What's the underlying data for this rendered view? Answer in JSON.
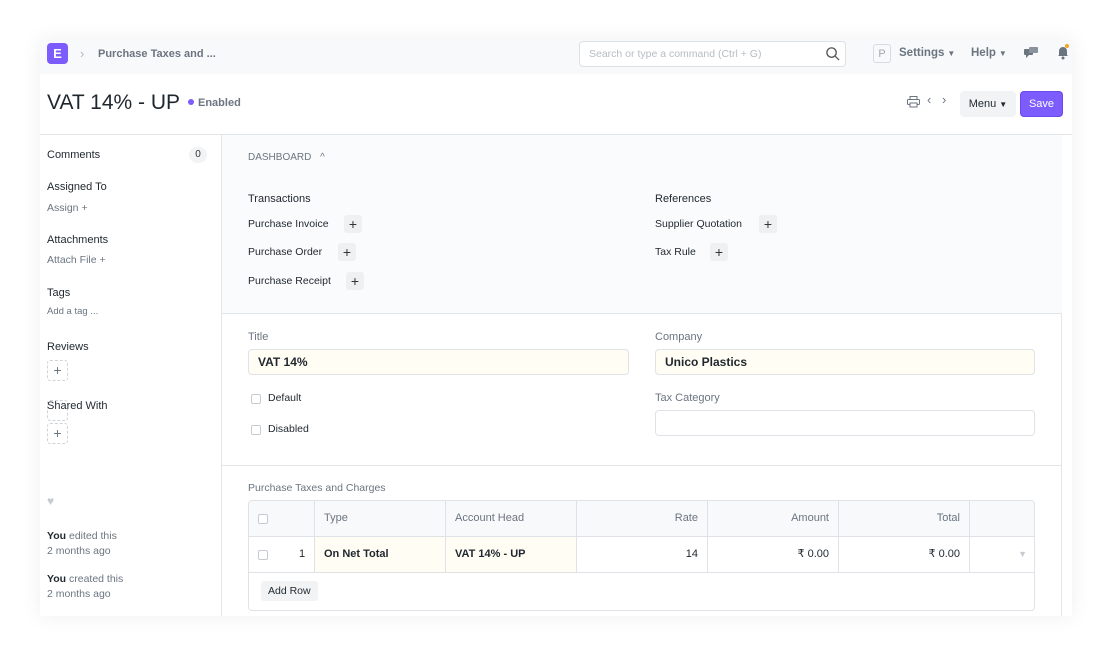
{
  "navbar": {
    "logo": "E",
    "breadcrumb": "Purchase Taxes and ...",
    "search_placeholder": "Search or type a command (Ctrl + G)",
    "avatar": "P",
    "settings": "Settings",
    "help": "Help",
    "accent": "#7c5cfc"
  },
  "header": {
    "title": "VAT 14% - UP",
    "status": "Enabled",
    "menu": "Menu",
    "save": "Save"
  },
  "sidebar": {
    "comments": "Comments",
    "comments_count": "0",
    "assigned_to": "Assigned To",
    "assign": "Assign",
    "attachments": "Attachments",
    "attach_file": "Attach File",
    "tags": "Tags",
    "add_tag": "Add a tag ...",
    "reviews": "Reviews",
    "shared_with": "Shared With",
    "activity": [
      {
        "who": "You",
        "what": " edited this",
        "when": "2 months ago"
      },
      {
        "who": "You",
        "what": " created this",
        "when": "2 months ago"
      }
    ]
  },
  "dashboard": {
    "label": "DASHBOARD",
    "transactions_title": "Transactions",
    "transactions": [
      "Purchase Invoice",
      "Purchase Order",
      "Purchase Receipt"
    ],
    "references_title": "References",
    "references": [
      "Supplier Quotation",
      "Tax Rule"
    ]
  },
  "form": {
    "title_label": "Title",
    "title_value": "VAT 14%",
    "company_label": "Company",
    "company_value": "Unico Plastics",
    "default_label": "Default",
    "disabled_label": "Disabled",
    "tax_category_label": "Tax Category",
    "tax_category_value": ""
  },
  "taxes": {
    "label": "Purchase Taxes and Charges",
    "columns": [
      "Type",
      "Account Head",
      "Rate",
      "Amount",
      "Total"
    ],
    "rows": [
      {
        "idx": "1",
        "type": "On Net Total",
        "account_head": "VAT 14% - UP",
        "rate": "14",
        "amount": "₹ 0.00",
        "total": "₹ 0.00"
      }
    ],
    "add_row": "Add Row"
  }
}
